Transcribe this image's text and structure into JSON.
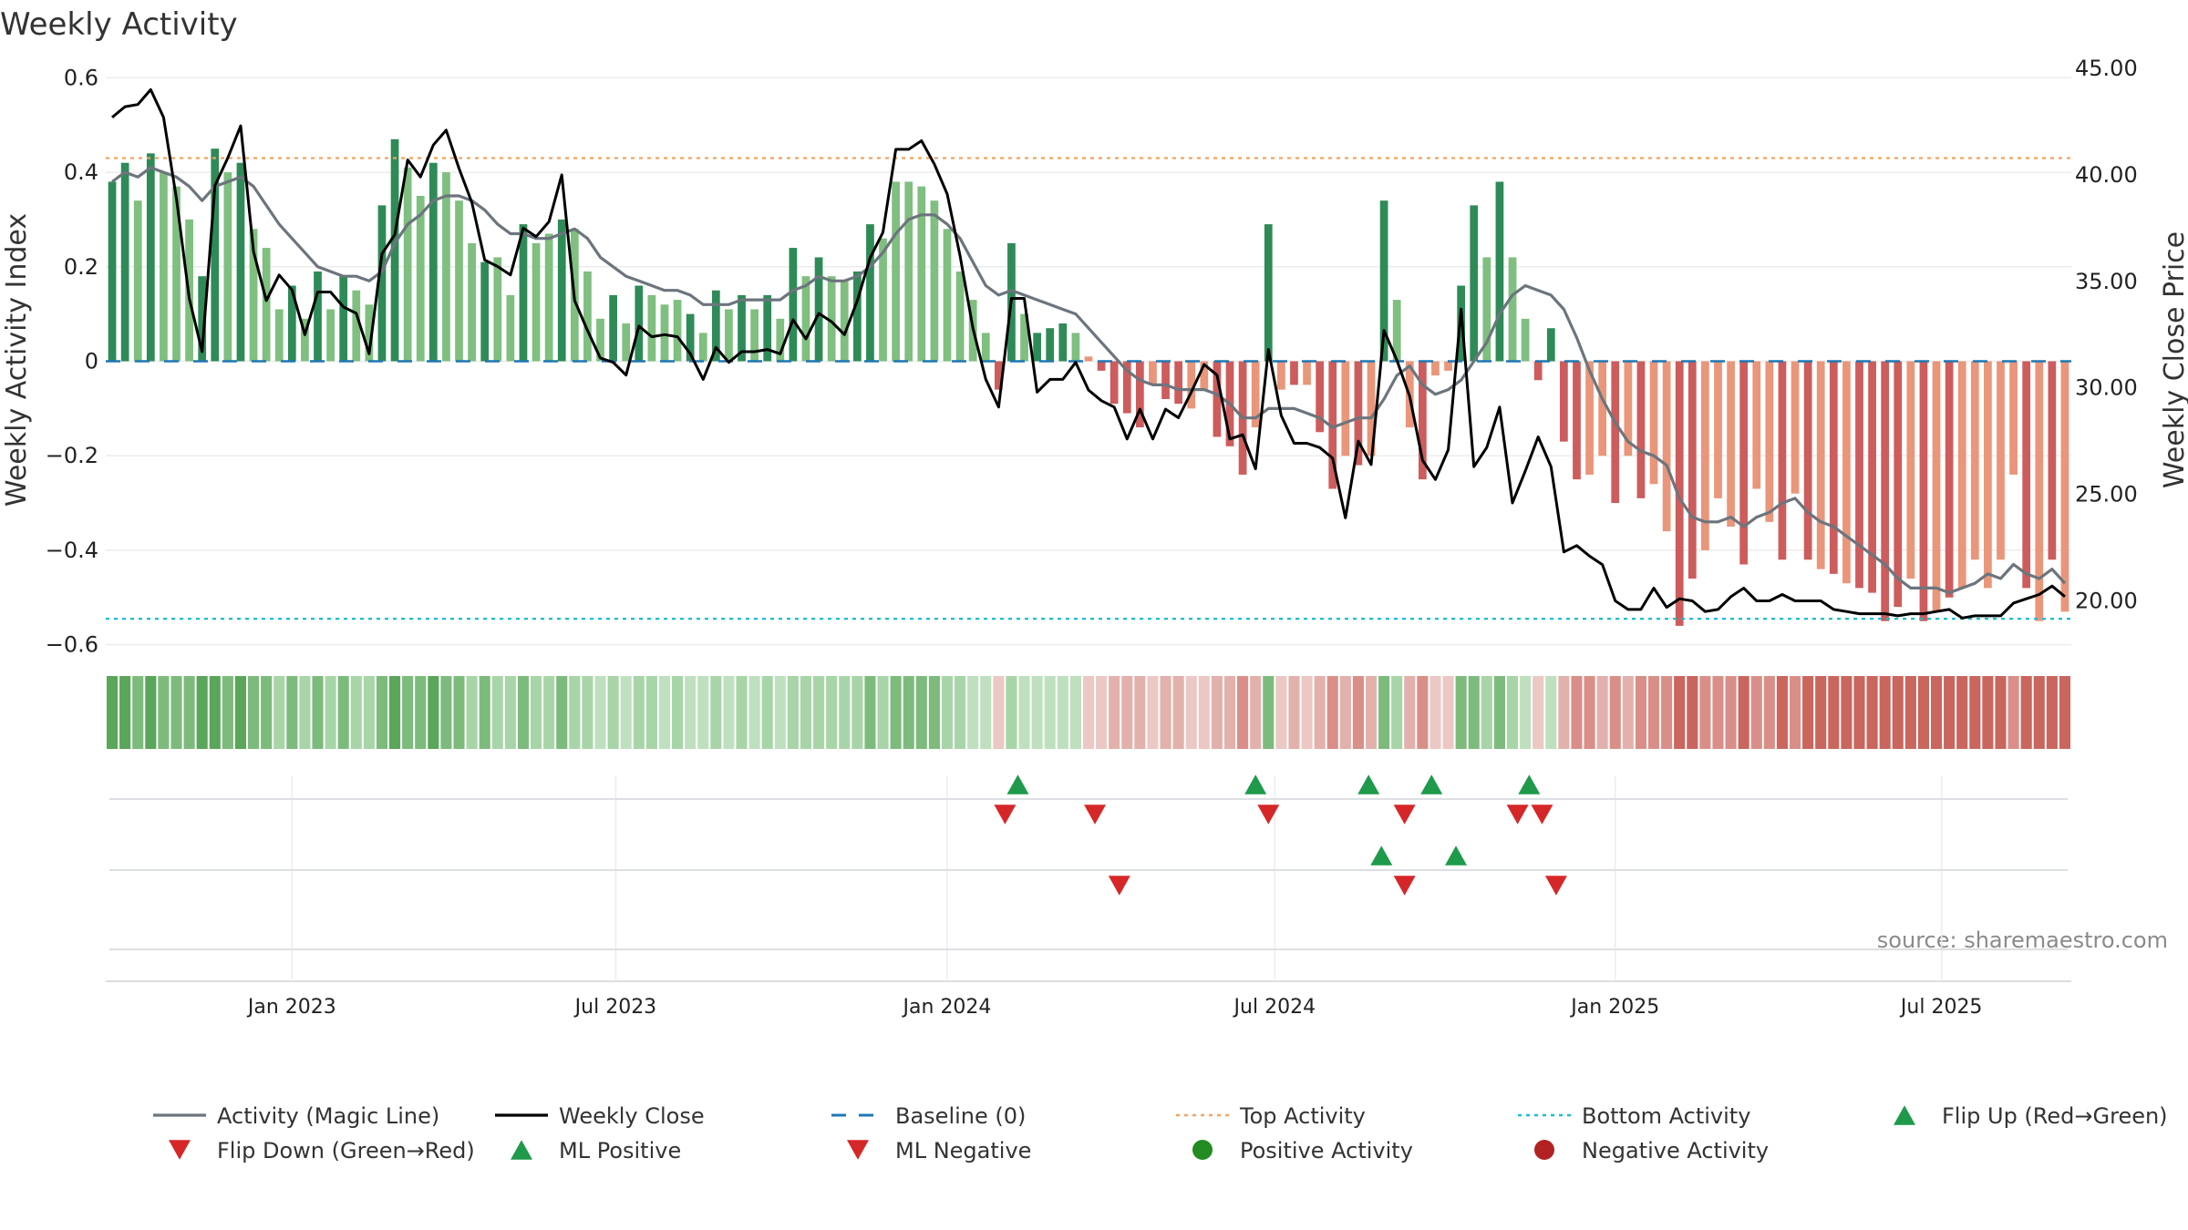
{
  "chart_data": {
    "type": "bar",
    "title": "Weekly Activity",
    "ylabel_left": "Weekly Activity Index",
    "ylabel_right": "Weekly Close Price",
    "source": "source: sharemaestro.com",
    "ylim_left": [
      -0.62,
      0.62
    ],
    "ylim_right": [
      17.5,
      45.0
    ],
    "yticks_left": [
      0.6,
      0.4,
      0.2,
      0,
      -0.2,
      -0.4,
      -0.6
    ],
    "ytick_labels_left": [
      "0.6",
      "0.4",
      "0.2",
      "0",
      "−0.2",
      "−0.4",
      "−0.6"
    ],
    "yticks_right": [
      45,
      40,
      35,
      30,
      25,
      20
    ],
    "ytick_labels_right": [
      "45.00",
      "40.00",
      "35.00",
      "30.00",
      "25.00",
      "20.00"
    ],
    "x_range_weeks": [
      0,
      153
    ],
    "xticks": [
      {
        "label": "Jan 2023",
        "week": 14.5
      },
      {
        "label": "Jul 2023",
        "week": 39.7
      },
      {
        "label": "Jan 2024",
        "week": 65.5
      },
      {
        "label": "Jul 2024",
        "week": 91
      },
      {
        "label": "Jan 2025",
        "week": 117.5
      },
      {
        "label": "Jul 2025",
        "week": 142.9
      }
    ],
    "top_activity": 0.43,
    "bottom_activity": -0.545,
    "baseline": 0,
    "activity": [
      0.38,
      0.42,
      0.34,
      0.44,
      0.4,
      0.37,
      0.3,
      0.18,
      0.45,
      0.4,
      0.42,
      0.28,
      0.24,
      0.11,
      0.16,
      0.09,
      0.19,
      0.11,
      0.18,
      0.15,
      0.12,
      0.33,
      0.47,
      0.41,
      0.35,
      0.42,
      0.4,
      0.34,
      0.25,
      0.21,
      0.22,
      0.14,
      0.29,
      0.25,
      0.27,
      0.3,
      0.28,
      0.19,
      0.09,
      0.14,
      0.08,
      0.16,
      0.14,
      0.12,
      0.13,
      0.1,
      0.06,
      0.15,
      0.11,
      0.14,
      0.11,
      0.14,
      0.09,
      0.24,
      0.18,
      0.22,
      0.18,
      0.17,
      0.19,
      0.29,
      0.26,
      0.38,
      0.38,
      0.37,
      0.34,
      0.28,
      0.19,
      0.13,
      0.06,
      -0.06,
      0.25,
      0.1,
      0.06,
      0.07,
      0.08,
      0.06,
      0.01,
      -0.02,
      -0.09,
      -0.11,
      -0.14,
      -0.05,
      -0.08,
      -0.09,
      -0.1,
      -0.06,
      -0.16,
      -0.18,
      -0.24,
      -0.14,
      0.29,
      -0.06,
      -0.05,
      -0.05,
      -0.15,
      -0.27,
      -0.2,
      -0.22,
      -0.2,
      0.34,
      0.13,
      -0.14,
      -0.25,
      -0.03,
      -0.02,
      0.16,
      0.33,
      0.22,
      0.38,
      0.22,
      0.09,
      -0.04,
      0.07,
      -0.17,
      -0.25,
      -0.24,
      -0.2,
      -0.3,
      -0.2,
      -0.29,
      -0.26,
      -0.36,
      -0.56,
      -0.46,
      -0.4,
      -0.29,
      -0.35,
      -0.43,
      -0.27,
      -0.34,
      -0.42,
      -0.28,
      -0.42,
      -0.44,
      -0.45,
      -0.47,
      -0.48,
      -0.49,
      -0.55,
      -0.52,
      -0.46,
      -0.55,
      -0.53,
      -0.5,
      -0.48,
      -0.42,
      -0.48,
      -0.42,
      -0.24,
      -0.48,
      -0.55,
      -0.42,
      -0.53
    ],
    "activity_colors": [
      "#2e8b57",
      "#2e8b57",
      "#7fbf7f",
      "#2e8b57",
      "#7fbf7f",
      "#7fbf7f",
      "#7fbf7f",
      "#2e8b57",
      "#2e8b57",
      "#7fbf7f",
      "#2e8b57",
      "#7fbf7f",
      "#7fbf7f",
      "#7fbf7f",
      "#2e8b57",
      "#7fbf7f",
      "#2e8b57",
      "#7fbf7f",
      "#2e8b57",
      "#7fbf7f",
      "#7fbf7f",
      "#2e8b57",
      "#2e8b57",
      "#7fbf7f",
      "#7fbf7f",
      "#2e8b57",
      "#7fbf7f",
      "#7fbf7f",
      "#7fbf7f",
      "#2e8b57",
      "#7fbf7f",
      "#7fbf7f",
      "#2e8b57",
      "#7fbf7f",
      "#7fbf7f",
      "#2e8b57",
      "#7fbf7f",
      "#7fbf7f",
      "#7fbf7f",
      "#2e8b57",
      "#7fbf7f",
      "#2e8b57",
      "#7fbf7f",
      "#7fbf7f",
      "#7fbf7f",
      "#2e8b57",
      "#7fbf7f",
      "#2e8b57",
      "#7fbf7f",
      "#2e8b57",
      "#7fbf7f",
      "#2e8b57",
      "#7fbf7f",
      "#2e8b57",
      "#7fbf7f",
      "#2e8b57",
      "#7fbf7f",
      "#7fbf7f",
      "#2e8b57",
      "#2e8b57",
      "#7fbf7f",
      "#7fbf7f",
      "#7fbf7f",
      "#7fbf7f",
      "#7fbf7f",
      "#7fbf7f",
      "#7fbf7f",
      "#7fbf7f",
      "#7fbf7f",
      "#cd5c5c",
      "#2e8b57",
      "#7fbf7f",
      "#2e8b57",
      "#2e8b57",
      "#2e8b57",
      "#7fbf7f",
      "#e9967a",
      "#cd5c5c",
      "#cd5c5c",
      "#cd5c5c",
      "#cd5c5c",
      "#e9967a",
      "#cd5c5c",
      "#cd5c5c",
      "#e9967a",
      "#e9967a",
      "#cd5c5c",
      "#cd5c5c",
      "#cd5c5c",
      "#e9967a",
      "#2e8b57",
      "#e9967a",
      "#cd5c5c",
      "#e9967a",
      "#cd5c5c",
      "#cd5c5c",
      "#e9967a",
      "#cd5c5c",
      "#e9967a",
      "#2e8b57",
      "#7fbf7f",
      "#e9967a",
      "#cd5c5c",
      "#e9967a",
      "#e9967a",
      "#2e8b57",
      "#2e8b57",
      "#7fbf7f",
      "#2e8b57",
      "#7fbf7f",
      "#7fbf7f",
      "#cd5c5c",
      "#2e8b57",
      "#cd5c5c",
      "#cd5c5c",
      "#e9967a",
      "#e9967a",
      "#cd5c5c",
      "#e9967a",
      "#cd5c5c",
      "#e9967a",
      "#e9967a",
      "#cd5c5c",
      "#cd5c5c",
      "#e9967a",
      "#e9967a",
      "#e9967a",
      "#cd5c5c",
      "#e9967a",
      "#e9967a",
      "#cd5c5c",
      "#e9967a",
      "#cd5c5c",
      "#e9967a",
      "#cd5c5c",
      "#e9967a",
      "#cd5c5c",
      "#cd5c5c",
      "#cd5c5c",
      "#cd5c5c",
      "#e9967a",
      "#cd5c5c",
      "#e9967a",
      "#cd5c5c",
      "#e9967a",
      "#e9967a",
      "#e9967a",
      "#e9967a",
      "#e9967a",
      "#cd5c5c",
      "#e9967a",
      "#cd5c5c",
      "#e9967a",
      "#cd5c5c"
    ],
    "magic_line": [
      0.38,
      0.4,
      0.39,
      0.41,
      0.4,
      0.39,
      0.37,
      0.34,
      0.37,
      0.38,
      0.39,
      0.37,
      0.33,
      0.29,
      0.26,
      0.23,
      0.2,
      0.19,
      0.18,
      0.18,
      0.17,
      0.19,
      0.25,
      0.29,
      0.31,
      0.34,
      0.35,
      0.35,
      0.34,
      0.32,
      0.29,
      0.27,
      0.27,
      0.26,
      0.26,
      0.27,
      0.28,
      0.26,
      0.22,
      0.2,
      0.18,
      0.17,
      0.16,
      0.15,
      0.15,
      0.14,
      0.12,
      0.12,
      0.12,
      0.13,
      0.13,
      0.13,
      0.13,
      0.15,
      0.16,
      0.18,
      0.17,
      0.17,
      0.18,
      0.2,
      0.23,
      0.27,
      0.3,
      0.31,
      0.31,
      0.29,
      0.26,
      0.21,
      0.16,
      0.14,
      0.15,
      0.14,
      0.13,
      0.12,
      0.11,
      0.1,
      0.07,
      0.04,
      0.01,
      -0.02,
      -0.04,
      -0.05,
      -0.05,
      -0.06,
      -0.06,
      -0.06,
      -0.07,
      -0.09,
      -0.12,
      -0.12,
      -0.1,
      -0.1,
      -0.1,
      -0.11,
      -0.12,
      -0.14,
      -0.13,
      -0.12,
      -0.12,
      -0.08,
      -0.03,
      -0.01,
      -0.05,
      -0.07,
      -0.06,
      -0.04,
      0.0,
      0.04,
      0.1,
      0.14,
      0.16,
      0.15,
      0.14,
      0.11,
      0.05,
      -0.02,
      -0.08,
      -0.13,
      -0.17,
      -0.19,
      -0.2,
      -0.22,
      -0.29,
      -0.33,
      -0.34,
      -0.34,
      -0.33,
      -0.35,
      -0.33,
      -0.32,
      -0.3,
      -0.29,
      -0.32,
      -0.34,
      -0.35,
      -0.37,
      -0.39,
      -0.41,
      -0.43,
      -0.46,
      -0.48,
      -0.48,
      -0.48,
      -0.49,
      -0.48,
      -0.47,
      -0.45,
      -0.46,
      -0.43,
      -0.45,
      -0.46,
      -0.44,
      -0.47
    ],
    "weekly_close": [
      42.7,
      43.2,
      43.3,
      44.0,
      42.7,
      38.9,
      34.2,
      31.7,
      39.5,
      40.8,
      42.3,
      36.4,
      34.1,
      35.3,
      34.6,
      32.5,
      34.5,
      34.5,
      33.8,
      33.5,
      31.6,
      36.3,
      37.2,
      40.7,
      39.9,
      41.4,
      42.1,
      40.3,
      38.7,
      36.0,
      35.7,
      35.3,
      37.5,
      37.1,
      37.8,
      40.0,
      34.1,
      32.7,
      31.4,
      31.2,
      30.6,
      32.9,
      32.4,
      32.5,
      32.4,
      31.6,
      30.4,
      31.9,
      31.2,
      31.7,
      31.7,
      31.8,
      31.6,
      33.2,
      32.3,
      33.5,
      33.1,
      32.5,
      34.1,
      36.1,
      37.3,
      41.2,
      41.2,
      41.6,
      40.5,
      39.1,
      36.2,
      32.8,
      30.4,
      29.1,
      34.2,
      34.2,
      29.8,
      30.4,
      30.4,
      31.2,
      29.9,
      29.4,
      29.1,
      27.6,
      29.0,
      27.6,
      29.0,
      28.6,
      29.8,
      31.1,
      30.6,
      27.6,
      27.8,
      26.2,
      31.8,
      28.7,
      27.4,
      27.4,
      27.2,
      26.7,
      23.9,
      27.5,
      26.4,
      32.7,
      31.3,
      29.6,
      26.6,
      25.7,
      27.1,
      33.7,
      26.3,
      27.2,
      29.1,
      24.6,
      26.1,
      27.7,
      26.3,
      22.3,
      22.6,
      22.1,
      21.7,
      20.0,
      19.6,
      19.6,
      20.6,
      19.7,
      20.1,
      20.0,
      19.5,
      19.6,
      20.2,
      20.6,
      20.0,
      20.0,
      20.3,
      20.0,
      20.0,
      20.0,
      19.6,
      19.5,
      19.4,
      19.4,
      19.4,
      19.3,
      19.4,
      19.4,
      19.5,
      19.6,
      19.2,
      19.3,
      19.3,
      19.3,
      19.9,
      20.1,
      20.3,
      20.7,
      20.2
    ],
    "strip_colors": [
      "#5aa65a",
      "#5aa65a",
      "#7dbb7d",
      "#5aa65a",
      "#7dbb7d",
      "#7dbb7d",
      "#7dbb7d",
      "#5aa65a",
      "#5aa65a",
      "#7dbb7d",
      "#5aa65a",
      "#7dbb7d",
      "#7dbb7d",
      "#a8d5a8",
      "#7dbb7d",
      "#a8d5a8",
      "#7dbb7d",
      "#a8d5a8",
      "#7dbb7d",
      "#a8d5a8",
      "#a8d5a8",
      "#7dbb7d",
      "#5aa65a",
      "#7dbb7d",
      "#7dbb7d",
      "#5aa65a",
      "#7dbb7d",
      "#7dbb7d",
      "#a8d5a8",
      "#7dbb7d",
      "#a8d5a8",
      "#a8d5a8",
      "#7dbb7d",
      "#a8d5a8",
      "#a8d5a8",
      "#7dbb7d",
      "#a8d5a8",
      "#a8d5a8",
      "#bfe0bf",
      "#a8d5a8",
      "#bfe0bf",
      "#a8d5a8",
      "#a8d5a8",
      "#bfe0bf",
      "#a8d5a8",
      "#bfe0bf",
      "#bfe0bf",
      "#a8d5a8",
      "#bfe0bf",
      "#a8d5a8",
      "#bfe0bf",
      "#a8d5a8",
      "#bfe0bf",
      "#a8d5a8",
      "#a8d5a8",
      "#a8d5a8",
      "#a8d5a8",
      "#a8d5a8",
      "#a8d5a8",
      "#7dbb7d",
      "#a8d5a8",
      "#7dbb7d",
      "#7dbb7d",
      "#7dbb7d",
      "#7dbb7d",
      "#a8d5a8",
      "#a8d5a8",
      "#bfe0bf",
      "#bfe0bf",
      "#ecc8c4",
      "#a8d5a8",
      "#bfe0bf",
      "#bfe0bf",
      "#bfe0bf",
      "#bfe0bf",
      "#bfe0bf",
      "#ecc8c4",
      "#ecc8c4",
      "#e3b1ac",
      "#e3b1ac",
      "#e3b1ac",
      "#ecc8c4",
      "#e3b1ac",
      "#e3b1ac",
      "#ecc8c4",
      "#ecc8c4",
      "#e3b1ac",
      "#e3b1ac",
      "#d98f88",
      "#e3b1ac",
      "#7dbb7d",
      "#ecc8c4",
      "#e3b1ac",
      "#ecc8c4",
      "#e3b1ac",
      "#d98f88",
      "#e3b1ac",
      "#d98f88",
      "#e3b1ac",
      "#7dbb7d",
      "#a8d5a8",
      "#e3b1ac",
      "#d98f88",
      "#ecc8c4",
      "#ecc8c4",
      "#7dbb7d",
      "#7dbb7d",
      "#a8d5a8",
      "#7dbb7d",
      "#a8d5a8",
      "#bfe0bf",
      "#ecc8c4",
      "#bfe0bf",
      "#e3b1ac",
      "#d98f88",
      "#d98f88",
      "#e3b1ac",
      "#d98f88",
      "#e3b1ac",
      "#d98f88",
      "#d98f88",
      "#d98f88",
      "#c9665e",
      "#c9665e",
      "#d98f88",
      "#d98f88",
      "#d98f88",
      "#c9665e",
      "#d98f88",
      "#d98f88",
      "#c9665e",
      "#d98f88",
      "#c9665e",
      "#c9665e",
      "#c9665e",
      "#c9665e",
      "#c9665e",
      "#c9665e",
      "#c9665e",
      "#c9665e",
      "#c9665e",
      "#c9665e",
      "#c9665e",
      "#c9665e",
      "#c9665e",
      "#c9665e",
      "#c9665e",
      "#c9665e",
      "#d98f88",
      "#c9665e",
      "#c9665e",
      "#c9665e",
      "#c9665e"
    ],
    "flip_up": [
      70.5,
      89.0,
      97.8,
      102.7,
      110.3
    ],
    "flip_down": [
      69.5,
      76.5,
      90.0,
      100.6,
      109.4,
      111.3
    ],
    "ml_positive": [
      98.8,
      104.6
    ],
    "ml_negative": [
      78.4,
      100.6,
      112.4
    ],
    "colors": {
      "positive_dark": "#2e8b57",
      "positive_light": "#7fbf7f",
      "negative_dark": "#cd5c5c",
      "negative_light": "#e9967a",
      "magic_line": "#6c757d",
      "weekly_close": "#000000",
      "baseline": "#1f77b4",
      "top_activity": "#f4a460",
      "bottom_activity": "#17becf",
      "flip_up": "#1e9a4a",
      "flip_down": "#d62728",
      "positive_dot": "#228b22",
      "negative_dot": "#b22222"
    },
    "legend": [
      {
        "label": "Activity (Magic Line)",
        "kind": "line",
        "color": "#6c757d"
      },
      {
        "label": "Weekly Close",
        "kind": "line",
        "color": "#000000"
      },
      {
        "label": "Baseline (0)",
        "kind": "dash",
        "color": "#1f77b4"
      },
      {
        "label": "Top Activity",
        "kind": "dot-line",
        "color": "#f4a460"
      },
      {
        "label": "Bottom Activity",
        "kind": "dot-line",
        "color": "#17becf"
      },
      {
        "label": "Flip Up (Red→Green)",
        "kind": "tri-up",
        "color": "#1e9a4a"
      },
      {
        "label": "Flip Down (Green→Red)",
        "kind": "tri-down",
        "color": "#d62728"
      },
      {
        "label": "ML Positive",
        "kind": "tri-up",
        "color": "#1e9a4a"
      },
      {
        "label": "ML Negative",
        "kind": "tri-down",
        "color": "#d62728"
      },
      {
        "label": "Positive Activity",
        "kind": "circle",
        "color": "#228b22"
      },
      {
        "label": "Negative Activity",
        "kind": "circle",
        "color": "#b22222"
      }
    ]
  }
}
